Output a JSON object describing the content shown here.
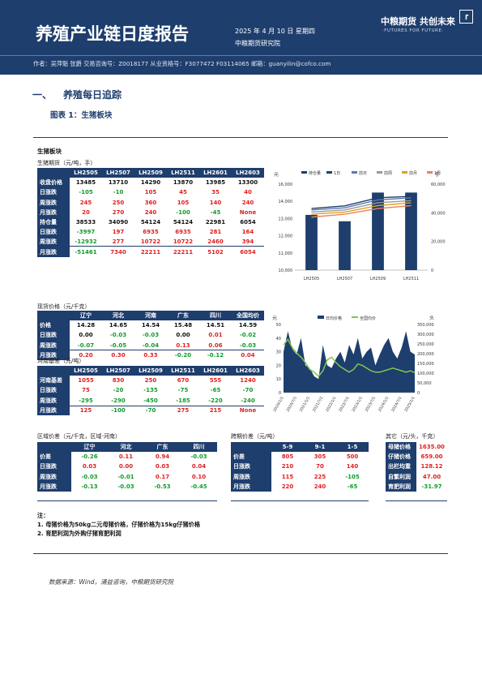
{
  "header": {
    "title": "养殖产业链日度报告",
    "date": "2025 年 4 月 10 日 星期四",
    "institute": "中粮期货研究院",
    "logo_cn": "中粮期货  共创未来",
    "logo_en": "·FUTURES FOR FUTURE·",
    "authors": "作者：吴萍魁  张爵  交易咨询号：Z0018177 从业资格号：F3077472 F03114065  邮箱：guanyilin@cofco.com"
  },
  "section": {
    "number": "一、",
    "title": "养殖每日追踪",
    "figure": "图表 1：生猪板块"
  },
  "block_title": "生猪板块",
  "futures": {
    "title": "生猪期货（元/吨，手）",
    "headers": [
      "",
      "LH2505",
      "LH2507",
      "LH2509",
      "LH2511",
      "LH2601",
      "LH2603"
    ],
    "rows": [
      {
        "label": "收盘价格",
        "cells": [
          {
            "v": "13485",
            "c": "blk"
          },
          {
            "v": "13710",
            "c": "blk"
          },
          {
            "v": "14290",
            "c": "blk"
          },
          {
            "v": "13870",
            "c": "blk"
          },
          {
            "v": "13985",
            "c": "blk"
          },
          {
            "v": "13300",
            "c": "blk"
          }
        ]
      },
      {
        "label": "日涨跌",
        "cells": [
          {
            "v": "-105",
            "c": "grn"
          },
          {
            "v": "-10",
            "c": "grn"
          },
          {
            "v": "105",
            "c": "red"
          },
          {
            "v": "45",
            "c": "red"
          },
          {
            "v": "35",
            "c": "red"
          },
          {
            "v": "40",
            "c": "red"
          }
        ]
      },
      {
        "label": "周涨跌",
        "cells": [
          {
            "v": "245",
            "c": "red"
          },
          {
            "v": "250",
            "c": "red"
          },
          {
            "v": "360",
            "c": "red"
          },
          {
            "v": "105",
            "c": "red"
          },
          {
            "v": "140",
            "c": "red"
          },
          {
            "v": "240",
            "c": "red"
          }
        ]
      },
      {
        "label": "月涨跌",
        "cells": [
          {
            "v": "20",
            "c": "red"
          },
          {
            "v": "270",
            "c": "red"
          },
          {
            "v": "240",
            "c": "red"
          },
          {
            "v": "-100",
            "c": "grn"
          },
          {
            "v": "-45",
            "c": "grn"
          },
          {
            "v": "None",
            "c": "red"
          }
        ]
      },
      {
        "label": "持仓量",
        "cells": [
          {
            "v": "38533",
            "c": "blk"
          },
          {
            "v": "34090",
            "c": "blk"
          },
          {
            "v": "54124",
            "c": "blk"
          },
          {
            "v": "54124",
            "c": "blk"
          },
          {
            "v": "22981",
            "c": "blk"
          },
          {
            "v": "6054",
            "c": "blk"
          }
        ]
      },
      {
        "label": "日涨跌",
        "cells": [
          {
            "v": "-3997",
            "c": "grn"
          },
          {
            "v": "197",
            "c": "red"
          },
          {
            "v": "6935",
            "c": "red"
          },
          {
            "v": "6935",
            "c": "red"
          },
          {
            "v": "281",
            "c": "red"
          },
          {
            "v": "164",
            "c": "red"
          }
        ]
      },
      {
        "label": "周涨跌",
        "cells": [
          {
            "v": "-12932",
            "c": "grn"
          },
          {
            "v": "277",
            "c": "red"
          },
          {
            "v": "10722",
            "c": "red"
          },
          {
            "v": "10722",
            "c": "red"
          },
          {
            "v": "2460",
            "c": "red"
          },
          {
            "v": "394",
            "c": "red"
          }
        ]
      },
      {
        "label": "月涨跌",
        "cells": [
          {
            "v": "-51461",
            "c": "grn"
          },
          {
            "v": "7340",
            "c": "red"
          },
          {
            "v": "22211",
            "c": "red"
          },
          {
            "v": "22211",
            "c": "red"
          },
          {
            "v": "5102",
            "c": "red"
          },
          {
            "v": "6054",
            "c": "red"
          }
        ]
      }
    ]
  },
  "spot": {
    "title": "现货价格（元/千克）",
    "headers": [
      "",
      "辽宁",
      "河北",
      "河南",
      "广东",
      "四川",
      "全国均价"
    ],
    "rows": [
      {
        "label": "价格",
        "cells": [
          {
            "v": "14.28",
            "c": "blk"
          },
          {
            "v": "14.65",
            "c": "blk"
          },
          {
            "v": "14.54",
            "c": "blk"
          },
          {
            "v": "15.48",
            "c": "blk"
          },
          {
            "v": "14.51",
            "c": "blk"
          },
          {
            "v": "14.59",
            "c": "blk"
          }
        ]
      },
      {
        "label": "日涨跌",
        "cells": [
          {
            "v": "0.00",
            "c": "blk"
          },
          {
            "v": "-0.03",
            "c": "grn"
          },
          {
            "v": "-0.03",
            "c": "grn"
          },
          {
            "v": "0.00",
            "c": "blk"
          },
          {
            "v": "0.01",
            "c": "red"
          },
          {
            "v": "-0.02",
            "c": "grn"
          }
        ]
      },
      {
        "label": "周涨跌",
        "cells": [
          {
            "v": "-0.07",
            "c": "grn"
          },
          {
            "v": "-0.05",
            "c": "grn"
          },
          {
            "v": "-0.04",
            "c": "grn"
          },
          {
            "v": "0.13",
            "c": "red"
          },
          {
            "v": "0.06",
            "c": "red"
          },
          {
            "v": "-0.03",
            "c": "grn"
          }
        ]
      },
      {
        "label": "月涨跌",
        "cells": [
          {
            "v": "0.20",
            "c": "red"
          },
          {
            "v": "0.30",
            "c": "red"
          },
          {
            "v": "0.33",
            "c": "red"
          },
          {
            "v": "-0.20",
            "c": "grn"
          },
          {
            "v": "-0.12",
            "c": "grn"
          },
          {
            "v": "0.04",
            "c": "red"
          }
        ]
      }
    ]
  },
  "basis": {
    "title": "河南基差（元/吨）",
    "headers": [
      "",
      "LH2505",
      "LH2507",
      "LH2509",
      "LH2511",
      "LH2601",
      "LH2603"
    ],
    "rows": [
      {
        "label": "河南基差",
        "cells": [
          {
            "v": "1055",
            "c": "red"
          },
          {
            "v": "830",
            "c": "red"
          },
          {
            "v": "250",
            "c": "red"
          },
          {
            "v": "670",
            "c": "red"
          },
          {
            "v": "555",
            "c": "red"
          },
          {
            "v": "1240",
            "c": "red"
          }
        ]
      },
      {
        "label": "日涨跌",
        "cells": [
          {
            "v": "75",
            "c": "red"
          },
          {
            "v": "-20",
            "c": "grn"
          },
          {
            "v": "-135",
            "c": "grn"
          },
          {
            "v": "-75",
            "c": "grn"
          },
          {
            "v": "-65",
            "c": "grn"
          },
          {
            "v": "-70",
            "c": "grn"
          }
        ]
      },
      {
        "label": "周涨跌",
        "cells": [
          {
            "v": "-295",
            "c": "grn"
          },
          {
            "v": "-290",
            "c": "grn"
          },
          {
            "v": "-450",
            "c": "grn"
          },
          {
            "v": "-185",
            "c": "grn"
          },
          {
            "v": "-220",
            "c": "grn"
          },
          {
            "v": "-240",
            "c": "grn"
          }
        ]
      },
      {
        "label": "月涨跌",
        "cells": [
          {
            "v": "125",
            "c": "red"
          },
          {
            "v": "-100",
            "c": "grn"
          },
          {
            "v": "-70",
            "c": "grn"
          },
          {
            "v": "275",
            "c": "red"
          },
          {
            "v": "215",
            "c": "red"
          },
          {
            "v": "None",
            "c": "red"
          }
        ]
      }
    ]
  },
  "regional": {
    "title": "区域价差（元/千克，区域-河南）",
    "headers": [
      "",
      "辽宁",
      "河北",
      "广东",
      "四川"
    ],
    "rows": [
      {
        "label": "价差",
        "cells": [
          {
            "v": "-0.26",
            "c": "grn"
          },
          {
            "v": "0.11",
            "c": "red"
          },
          {
            "v": "0.94",
            "c": "red"
          },
          {
            "v": "-0.03",
            "c": "grn"
          }
        ]
      },
      {
        "label": "日涨跌",
        "cells": [
          {
            "v": "0.03",
            "c": "red"
          },
          {
            "v": "0.00",
            "c": "red"
          },
          {
            "v": "0.03",
            "c": "red"
          },
          {
            "v": "0.04",
            "c": "red"
          }
        ]
      },
      {
        "label": "周涨跌",
        "cells": [
          {
            "v": "-0.03",
            "c": "grn"
          },
          {
            "v": "-0.01",
            "c": "grn"
          },
          {
            "v": "0.17",
            "c": "red"
          },
          {
            "v": "0.10",
            "c": "red"
          }
        ]
      },
      {
        "label": "月涨跌",
        "cells": [
          {
            "v": "-0.13",
            "c": "grn"
          },
          {
            "v": "-0.03",
            "c": "grn"
          },
          {
            "v": "-0.53",
            "c": "grn"
          },
          {
            "v": "-0.45",
            "c": "grn"
          }
        ]
      }
    ]
  },
  "spread": {
    "title": "跨期价差（元/吨）",
    "headers": [
      "",
      "5-9",
      "9-1",
      "1-5"
    ],
    "rows": [
      {
        "label": "价差",
        "cells": [
          {
            "v": "805",
            "c": "red"
          },
          {
            "v": "305",
            "c": "red"
          },
          {
            "v": "500",
            "c": "red"
          }
        ]
      },
      {
        "label": "日涨跌",
        "cells": [
          {
            "v": "210",
            "c": "red"
          },
          {
            "v": "70",
            "c": "red"
          },
          {
            "v": "140",
            "c": "red"
          }
        ]
      },
      {
        "label": "周涨跌",
        "cells": [
          {
            "v": "115",
            "c": "red"
          },
          {
            "v": "225",
            "c": "red"
          },
          {
            "v": "-105",
            "c": "grn"
          }
        ]
      },
      {
        "label": "月涨跌",
        "cells": [
          {
            "v": "220",
            "c": "red"
          },
          {
            "v": "240",
            "c": "red"
          },
          {
            "v": "-65",
            "c": "grn"
          }
        ]
      }
    ]
  },
  "other": {
    "title": "其它（元/头，千克）",
    "rows": [
      {
        "label": "母猪价格",
        "v": "1635.00",
        "c": "red"
      },
      {
        "label": "仔猪价格",
        "v": "659.00",
        "c": "red"
      },
      {
        "label": "出栏均重",
        "v": "128.12",
        "c": "red"
      },
      {
        "label": "自繁利润",
        "v": "47.00",
        "c": "red"
      },
      {
        "label": "育肥利润",
        "v": "-31.97",
        "c": "grn"
      }
    ]
  },
  "notes": {
    "title": "注：",
    "n1": "1. 母猪价格为50kg二元母猪价格，仔猪价格为15kg仔猪价格",
    "n2": "2. 育肥利润为外购仔猪育肥利润"
  },
  "source": "数据来源：Wind，涌益咨询，中粮期货研究院",
  "chart_data": [
    {
      "type": "bar",
      "categories": [
        "LH2505",
        "LH2507",
        "LH2509",
        "LH2511"
      ],
      "bar_series": {
        "name": "持仓量",
        "values": [
          38533,
          34090,
          54124,
          54124
        ],
        "color": "#1e3e6d"
      },
      "line_series": [
        {
          "name": "1日",
          "values": [
            14300,
            14480,
            15050,
            15150
          ],
          "color": "#1e3e6d"
        },
        {
          "name": "前日",
          "values": [
            14200,
            14350,
            14900,
            15050
          ],
          "color": "#5a78b4"
        },
        {
          "name": "前周",
          "values": [
            14050,
            14200,
            14700,
            14850
          ],
          "color": "#9a9a9a"
        },
        {
          "name": "前月",
          "values": [
            13900,
            14050,
            14500,
            14700
          ],
          "color": "#e2a01e"
        },
        {
          "name": "1月",
          "values": [
            13700,
            13900,
            14300,
            14500
          ],
          "color": "#e8845a"
        }
      ],
      "y_left": [
        10000,
        16000
      ],
      "y_left_ticks": [
        "16,000",
        "14,000",
        "13,000",
        "12,000",
        "11,000",
        "10,000"
      ],
      "y_right": [
        0,
        60000
      ],
      "y_right_ticks": [
        "60,000",
        "40,000",
        "20,000",
        "0"
      ],
      "y_left_title": "元",
      "y_right_title": "手"
    },
    {
      "type": "line",
      "legend": [
        "日均价格",
        "全国均价"
      ],
      "x": [
        "2020/1/1",
        "2020/7/1",
        "2021/1/1",
        "2021/7/1",
        "2022/1/1",
        "2022/7/1",
        "2023/1/1",
        "2023/7/1",
        "2024/1/1",
        "2024/7/1",
        "2025/1/1"
      ],
      "area_values": [
        30,
        45,
        32,
        28,
        40,
        20,
        18,
        12,
        10,
        35,
        20,
        18,
        25,
        30,
        22,
        35,
        28,
        40,
        25,
        30,
        33,
        20,
        28,
        35,
        40,
        30,
        25,
        33,
        45,
        30,
        28
      ],
      "line_values": [
        35,
        39,
        33,
        29,
        26,
        22,
        17,
        15,
        12,
        16,
        24,
        26,
        22,
        19,
        17,
        15,
        17,
        21,
        20,
        18,
        16,
        15,
        15,
        16,
        17,
        18,
        17,
        16,
        15,
        16,
        14.6
      ],
      "y_left": [
        0,
        50
      ],
      "y_left_ticks": [
        "50",
        "40",
        "30",
        "20",
        "10",
        "0"
      ],
      "y_right": [
        0,
        350000
      ],
      "y_right_ticks": [
        "350,000",
        "300,000",
        "250,000",
        "200,000",
        "150,000",
        "100,000",
        "50,000",
        "0"
      ],
      "y_left_title": "元",
      "y_right_title": "头"
    }
  ]
}
